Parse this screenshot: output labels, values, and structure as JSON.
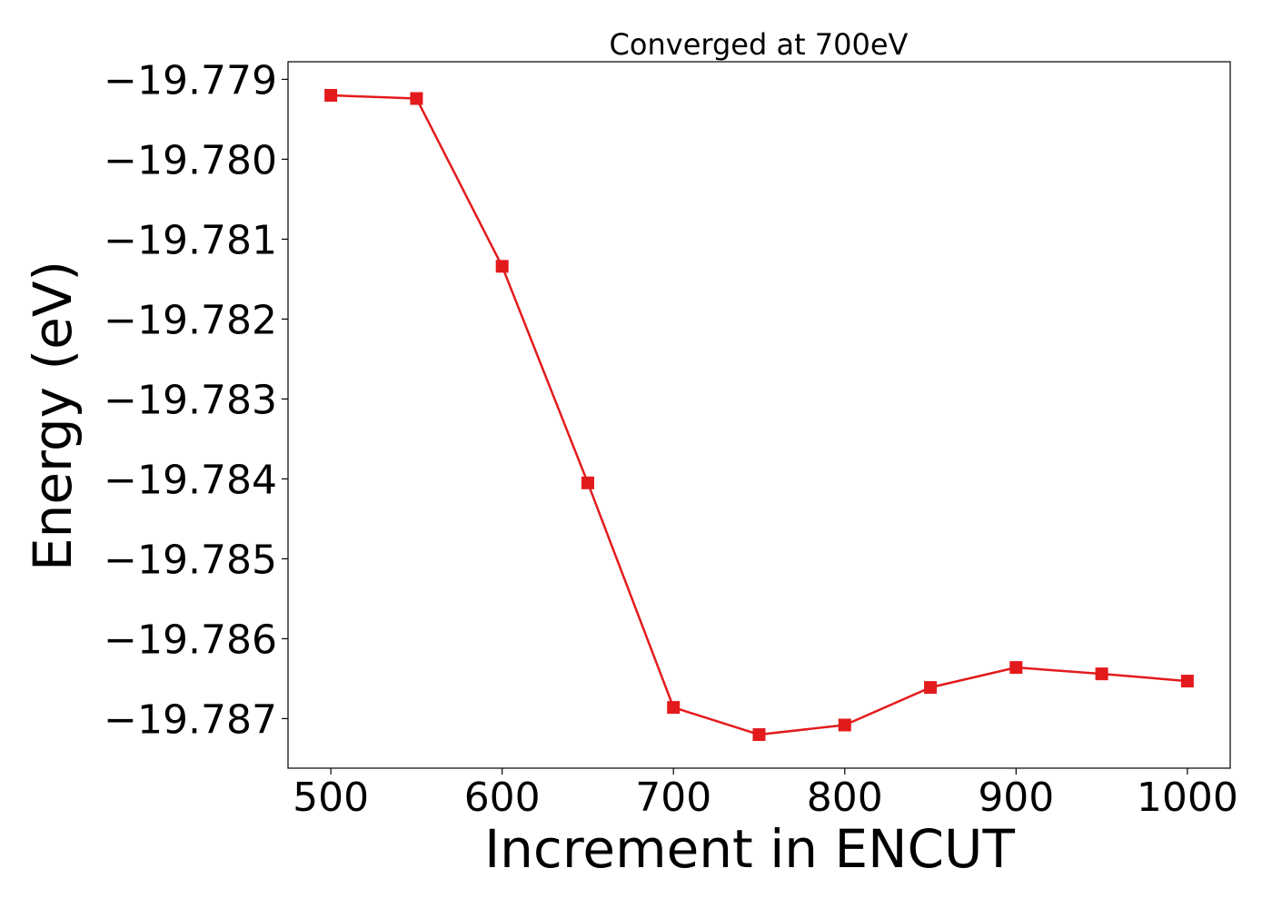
{
  "chart_data": {
    "type": "line",
    "title": "Converged at 700eV",
    "xlabel": "Increment in ENCUT",
    "ylabel": "Energy (eV)",
    "xlim": [
      475,
      1025
    ],
    "ylim": [
      -19.78762,
      -19.77878
    ],
    "x_ticks": [
      500,
      600,
      700,
      800,
      900,
      1000
    ],
    "x_tick_labels": [
      "500",
      "600",
      "700",
      "800",
      "900",
      "1000"
    ],
    "y_ticks": [
      -19.779,
      -19.78,
      -19.781,
      -19.782,
      -19.783,
      -19.784,
      -19.785,
      -19.786,
      -19.787
    ],
    "y_tick_labels": [
      "−19.779",
      "−19.780",
      "−19.781",
      "−19.782",
      "−19.783",
      "−19.784",
      "−19.785",
      "−19.786",
      "−19.787"
    ],
    "grid": false,
    "series": [
      {
        "color": "#e31a1c",
        "marker": "square",
        "x": [
          500,
          550,
          600,
          650,
          700,
          750,
          800,
          850,
          900,
          950,
          1000
        ],
        "y": [
          -19.7792,
          -19.77924,
          -19.78134,
          -19.78405,
          -19.78686,
          -19.7872,
          -19.78708,
          -19.78661,
          -19.78636,
          -19.78644,
          -19.78653
        ]
      }
    ]
  }
}
